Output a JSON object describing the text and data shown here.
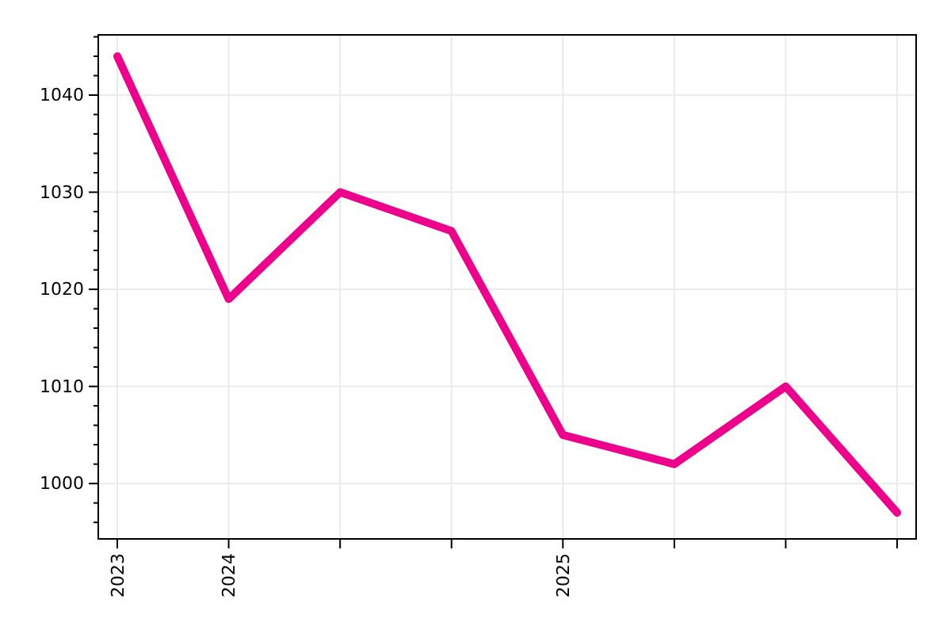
{
  "chart_data": {
    "type": "line",
    "categories": [
      "2023",
      "2024",
      null,
      null,
      "2025",
      null,
      null,
      null
    ],
    "series": [
      {
        "color": "#ec008c",
        "values": [
          1044,
          1019,
          1030,
          1026,
          1005,
          1002,
          1010,
          997
        ]
      }
    ],
    "ylim": [
      994.3,
      1046.2
    ],
    "yticks": [
      {
        "value": 996,
        "label": null
      },
      {
        "value": 998,
        "label": null
      },
      1000,
      {
        "value": 1002,
        "label": null
      },
      {
        "value": 1004,
        "label": null
      },
      {
        "value": 1006,
        "label": null
      },
      {
        "value": 1008,
        "label": null
      },
      1010,
      {
        "value": 1012,
        "label": null
      },
      {
        "value": 1014,
        "label": null
      },
      {
        "value": 1016,
        "label": null
      },
      {
        "value": 1018,
        "label": null
      },
      1020,
      {
        "value": 1022,
        "label": null
      },
      {
        "value": 1024,
        "label": null
      },
      {
        "value": 1026,
        "label": null
      },
      {
        "value": 1028,
        "label": null
      },
      1030,
      {
        "value": 1032,
        "label": null
      },
      {
        "value": 1034,
        "label": null
      },
      {
        "value": 1036,
        "label": null
      },
      {
        "value": 1038,
        "label": null
      },
      1040,
      {
        "value": 1042,
        "label": null
      },
      {
        "value": 1044,
        "label": null
      },
      {
        "value": 1046,
        "label": null
      }
    ],
    "grid": true,
    "marker": "none",
    "line_style": "solid"
  }
}
